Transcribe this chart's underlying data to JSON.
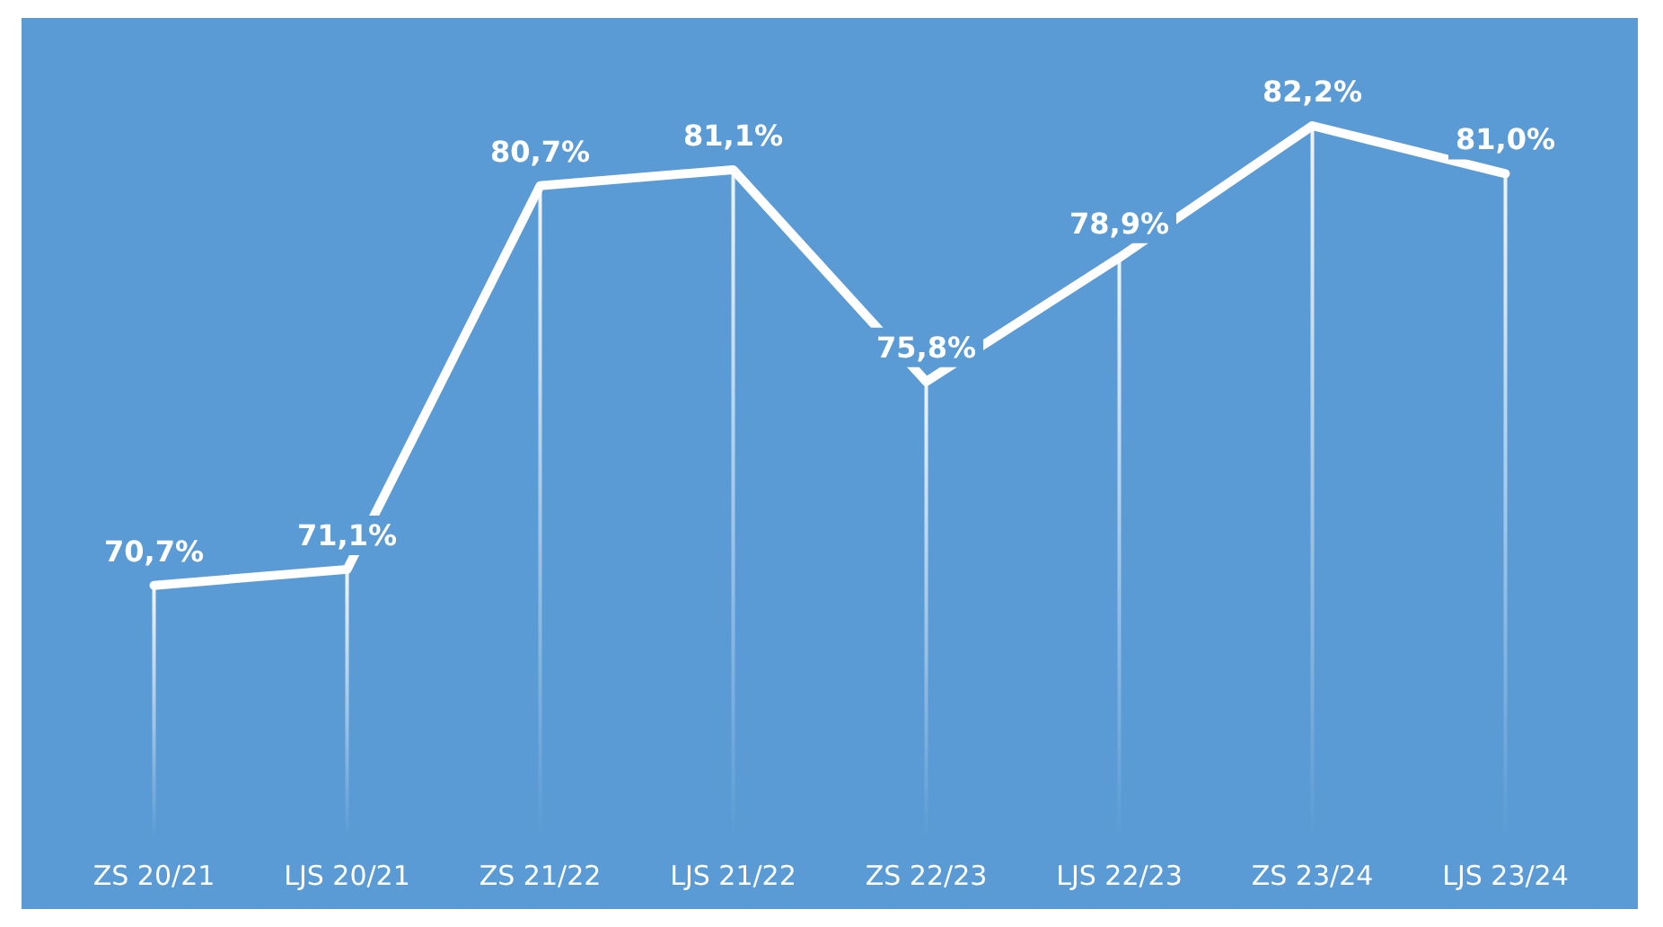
{
  "chart_data": {
    "type": "line",
    "categories": [
      "ZS 20/21",
      "LJS 20/21",
      "ZS 21/22",
      "LJS 21/22",
      "ZS 22/23",
      "LJS 22/23",
      "ZS 23/24",
      "LJS 23/24"
    ],
    "series": [
      {
        "color": "#ffffff",
        "values": [
          70.7,
          71.1,
          80.7,
          81.1,
          75.8,
          78.9,
          82.2,
          81.0
        ],
        "value_labels": [
          "70,7%",
          "71,1%",
          "80,7%",
          "81,1%",
          "75,8%",
          "78,9%",
          "82,2%",
          "81,0%"
        ]
      },
      {
        "type": "bar",
        "color": "#ffffff",
        "values": [
          70.7,
          71.1,
          80.7,
          81.1,
          75.8,
          78.9,
          82.2,
          81.0
        ]
      }
    ],
    "ylim": [
      64.4,
      82.2
    ],
    "line_style": "solid",
    "grid": false
  }
}
